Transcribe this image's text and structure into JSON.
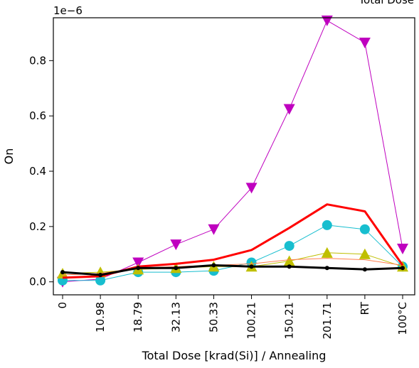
{
  "chart_data": {
    "type": "line",
    "title": "Total Dose",
    "offset_text": "1e−6",
    "xlabel": "Total Dose [krad(Si)] / Annealing",
    "ylabel": "On",
    "categories": [
      "0",
      "10.98",
      "18.79",
      "32.13",
      "50.33",
      "100.21",
      "150.21",
      "201.71",
      "RT",
      "100°C"
    ],
    "y_ticks": [
      0.0,
      0.2,
      0.4,
      0.6,
      0.8
    ],
    "y_tick_labels": [
      "0.0",
      "0.2",
      "0.4",
      "0.6",
      "0.8"
    ],
    "y_scale": "1e-6",
    "ylim": [
      -0.047,
      0.955
    ],
    "grid": false,
    "legend": "none",
    "series": [
      {
        "color": "#bf00bf",
        "marker": "triangle-down",
        "line_width": 1,
        "values": [
          0.0,
          0.01,
          0.07,
          0.135,
          0.19,
          0.34,
          0.625,
          0.945,
          0.865,
          0.12
        ]
      },
      {
        "color": "#17becf",
        "marker": "circle",
        "line_width": 1,
        "values": [
          0.005,
          0.005,
          0.035,
          0.035,
          0.04,
          0.07,
          0.13,
          0.205,
          0.19,
          0.055
        ]
      },
      {
        "color": "#bfbf00",
        "marker": "triangle-up",
        "line_width": 1,
        "values": [
          0.03,
          0.035,
          0.045,
          0.05,
          0.055,
          0.055,
          0.075,
          0.105,
          0.1,
          0.055
        ]
      },
      {
        "color": "#ff7f50",
        "marker": "none",
        "line_width": 1,
        "values": [
          0.025,
          0.03,
          0.05,
          0.055,
          0.06,
          0.065,
          0.08,
          0.085,
          0.08,
          0.06
        ]
      },
      {
        "color": "#ff0000",
        "marker": "none",
        "line_width": 3,
        "values": [
          0.015,
          0.02,
          0.055,
          0.065,
          0.08,
          0.115,
          0.195,
          0.28,
          0.255,
          0.06
        ]
      },
      {
        "color": "#000000",
        "marker": "small-dot",
        "line_width": 3,
        "values": [
          0.035,
          0.025,
          0.05,
          0.05,
          0.06,
          0.055,
          0.055,
          0.05,
          0.045,
          0.05
        ]
      }
    ]
  }
}
